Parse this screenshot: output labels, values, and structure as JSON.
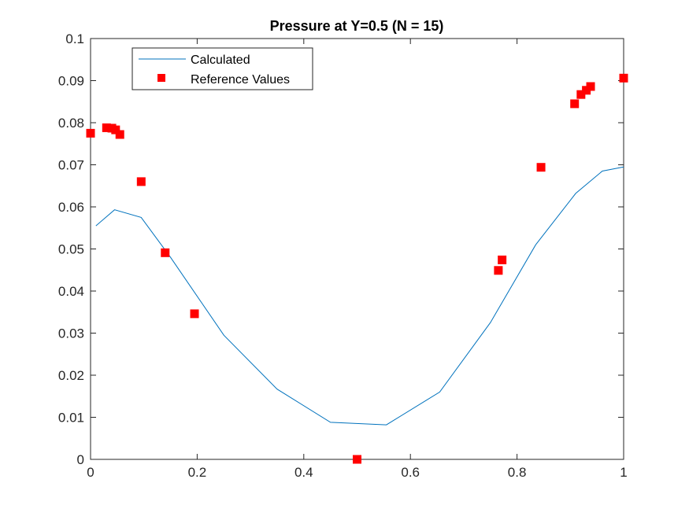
{
  "chart_data": {
    "type": "line",
    "title": "Pressure at Y=0.5 (N = 15)",
    "xlabel": "",
    "ylabel": "",
    "xlim": [
      0,
      1
    ],
    "ylim": [
      0,
      0.1
    ],
    "xticks": [
      0,
      0.2,
      0.4,
      0.6,
      0.8,
      1
    ],
    "xtick_labels": [
      "0",
      "0.2",
      "0.4",
      "0.6",
      "0.8",
      "1"
    ],
    "yticks": [
      0,
      0.01,
      0.02,
      0.03,
      0.04,
      0.05,
      0.06,
      0.07,
      0.08,
      0.09,
      0.1
    ],
    "ytick_labels": [
      "0",
      "0.01",
      "0.02",
      "0.03",
      "0.04",
      "0.05",
      "0.06",
      "0.07",
      "0.08",
      "0.09",
      "0.1"
    ],
    "grid": false,
    "legend_position": "top-left",
    "series": [
      {
        "name": "Calculated",
        "style": "line",
        "color": "#0072BD",
        "x": [
          0.01,
          0.045,
          0.095,
          0.15,
          0.25,
          0.35,
          0.45,
          0.555,
          0.655,
          0.75,
          0.835,
          0.91,
          0.96,
          1.0
        ],
        "y": [
          0.0555,
          0.0593,
          0.0575,
          0.048,
          0.0295,
          0.0167,
          0.0088,
          0.0082,
          0.016,
          0.0325,
          0.051,
          0.0632,
          0.0685,
          0.0695
        ]
      },
      {
        "name": "Reference Values",
        "style": "marker",
        "marker": "square",
        "color": "#FF0000",
        "x": [
          0.0,
          0.03,
          0.04,
          0.047,
          0.055,
          0.095,
          0.14,
          0.195,
          0.5,
          0.765,
          0.772,
          0.845,
          0.908,
          0.92,
          0.93,
          0.938,
          1.0
        ],
        "y": [
          0.0775,
          0.0788,
          0.0787,
          0.0783,
          0.0772,
          0.066,
          0.0491,
          0.0346,
          0.0,
          0.0449,
          0.0474,
          0.0694,
          0.0845,
          0.0867,
          0.0877,
          0.0886,
          0.0906
        ]
      }
    ]
  }
}
